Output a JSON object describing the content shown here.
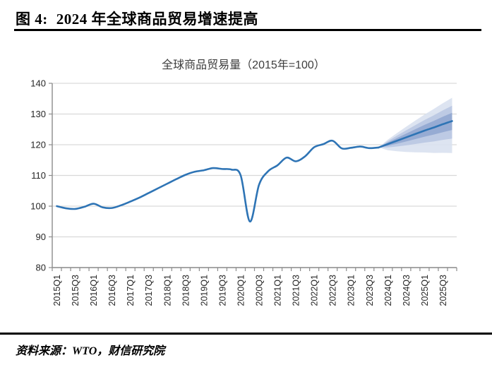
{
  "header": {
    "figure_label": "图 4:",
    "title": "2024 年全球商品贸易增速提高"
  },
  "chart": {
    "title": "全球商品贸易量（2015年=100）"
  },
  "source": {
    "text": "资料来源：WTO，财信研究院"
  },
  "chart_data": {
    "type": "line",
    "title": "全球商品贸易量（2015年=100）",
    "xlabel": "",
    "ylabel": "",
    "ylim": [
      80,
      140
    ],
    "y_ticks": [
      80,
      90,
      100,
      110,
      120,
      130,
      140
    ],
    "grid": "horizontal-major",
    "legend": "none",
    "x_tick_labels": [
      "2015Q1",
      "2015Q3",
      "2016Q1",
      "2016Q3",
      "2017Q1",
      "2017Q3",
      "2018Q1",
      "2018Q3",
      "2019Q1",
      "2019Q3",
      "2020Q1",
      "2020Q3",
      "2021Q1",
      "2021Q3",
      "2022Q1",
      "2022Q3",
      "2023Q1",
      "2023Q3",
      "2024Q1",
      "2024Q3",
      "2025Q1",
      "2025Q3"
    ],
    "categories": [
      "2015Q1",
      "2015Q2",
      "2015Q3",
      "2015Q4",
      "2016Q1",
      "2016Q2",
      "2016Q3",
      "2016Q4",
      "2017Q1",
      "2017Q2",
      "2017Q3",
      "2017Q4",
      "2018Q1",
      "2018Q2",
      "2018Q3",
      "2018Q4",
      "2019Q1",
      "2019Q2",
      "2019Q3",
      "2019Q4",
      "2020Q1",
      "2020Q2",
      "2020Q3",
      "2020Q4",
      "2021Q1",
      "2021Q2",
      "2021Q3",
      "2021Q4",
      "2022Q1",
      "2022Q2",
      "2022Q3",
      "2022Q4",
      "2023Q1",
      "2023Q2",
      "2023Q3",
      "2023Q4",
      "2024Q1",
      "2024Q2",
      "2024Q3",
      "2024Q4",
      "2025Q1",
      "2025Q2",
      "2025Q3",
      "2025Q4"
    ],
    "series": [
      {
        "name": "actual",
        "values": [
          100.0,
          99.3,
          99.1,
          99.8,
          100.8,
          99.6,
          99.4,
          100.3,
          101.5,
          102.8,
          104.3,
          105.8,
          107.3,
          108.8,
          110.2,
          111.2,
          111.7,
          112.4,
          112.1,
          111.9,
          110.0,
          95.0,
          107.0,
          111.4,
          113.3,
          115.8,
          114.6,
          116.2,
          119.2,
          120.2,
          121.3,
          118.8,
          119.0,
          119.4,
          118.9,
          119.1
        ]
      },
      {
        "name": "forecast",
        "values": [
          120.2,
          121.3,
          122.4,
          123.5,
          124.6,
          125.6,
          126.7,
          127.7
        ]
      }
    ],
    "forecast_start_index": 36,
    "fan_bands": [
      {
        "name": "inner",
        "color": "#91a7d0",
        "upper_end": 2.7,
        "lower_end": 2.9
      },
      {
        "name": "middle",
        "color": "#b9c6e2",
        "upper_end": 5.0,
        "lower_end": 5.7
      },
      {
        "name": "outer",
        "color": "#d9e1f0",
        "upper_end": 7.6,
        "lower_end": 10.4
      }
    ],
    "line_color": "#2e74b5",
    "gridline_color": "#d9d9d9",
    "axis_color": "#8c8c8c",
    "tick_label_color": "#262626"
  }
}
